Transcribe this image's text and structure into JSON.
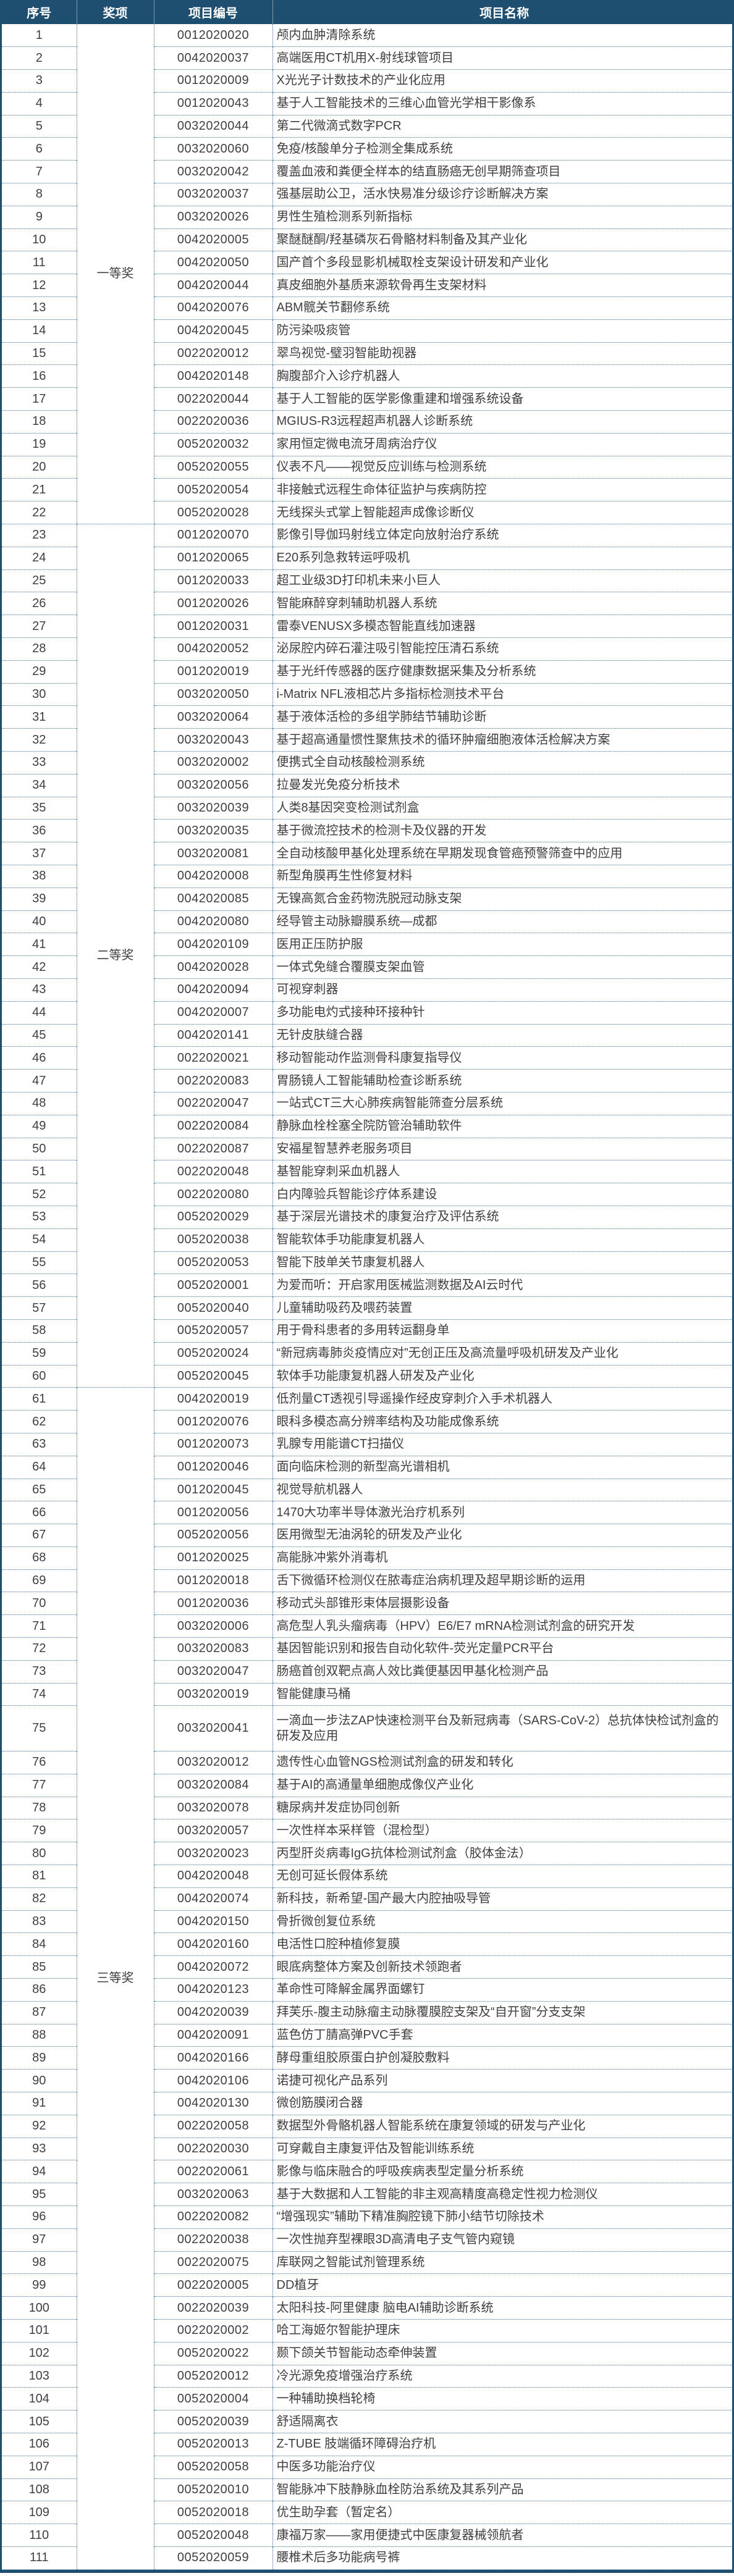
{
  "colors": {
    "header_bg": "#1e4e70",
    "body_text": "#3f3f3f",
    "grid_dotted": "#3f6f9f"
  },
  "table": {
    "columns": [
      "序号",
      "奖项",
      "项目编号",
      "项目名称"
    ],
    "groups": [
      {
        "label": "一等奖",
        "start": 1,
        "end": 22
      },
      {
        "label": "二等奖",
        "start": 23,
        "end": 60
      },
      {
        "label": "三等奖",
        "start": 61,
        "end": 111
      }
    ],
    "rows": [
      {
        "no": "1",
        "code": "0012020020",
        "name": "颅内血肿清除系统"
      },
      {
        "no": "2",
        "code": "0042020037",
        "name": "高端医用CT机用X-射线球管项目"
      },
      {
        "no": "3",
        "code": "0012020009",
        "name": "X光光子计数技术的产业化应用"
      },
      {
        "no": "4",
        "code": "0012020043",
        "name": "基于人工智能技术的三维心血管光学相干影像系"
      },
      {
        "no": "5",
        "code": "0032020044",
        "name": "第二代微滴式数字PCR"
      },
      {
        "no": "6",
        "code": "0032020060",
        "name": "免疫/核酸单分子检测全集成系统"
      },
      {
        "no": "7",
        "code": "0032020042",
        "name": "覆盖血液和粪便全样本的结直肠癌无创早期筛查项目"
      },
      {
        "no": "8",
        "code": "0032020037",
        "name": "强基层助公卫，活水快易准分级诊疗诊断解决方案"
      },
      {
        "no": "9",
        "code": "0032020026",
        "name": "男性生殖检测系列新指标"
      },
      {
        "no": "10",
        "code": "0042020005",
        "name": "聚醚醚酮/羟基磷灰石骨骼材料制备及其产业化"
      },
      {
        "no": "11",
        "code": "0042020050",
        "name": "国产首个多段显影机械取栓支架设计研发和产业化"
      },
      {
        "no": "12",
        "code": "0042020044",
        "name": "真皮细胞外基质来源软骨再生支架材料"
      },
      {
        "no": "13",
        "code": "0042020076",
        "name": "ABM髋关节翻修系统"
      },
      {
        "no": "14",
        "code": "0042020045",
        "name": "防污染吸痰管"
      },
      {
        "no": "15",
        "code": "0022020012",
        "name": "翠鸟视觉-璧羽智能助视器"
      },
      {
        "no": "16",
        "code": "0042020148",
        "name": "胸腹部介入诊疗机器人"
      },
      {
        "no": "17",
        "code": "0022020044",
        "name": "基于人工智能的医学影像重建和增强系统设备"
      },
      {
        "no": "18",
        "code": "0022020036",
        "name": "MGIUS-R3远程超声机器人诊断系统"
      },
      {
        "no": "19",
        "code": "0052020032",
        "name": "家用恒定微电流牙周病治疗仪"
      },
      {
        "no": "20",
        "code": "0052020055",
        "name": "仪表不凡——视觉反应训练与检测系统"
      },
      {
        "no": "21",
        "code": "0052020054",
        "name": "非接触式远程生命体征监护与疾病防控"
      },
      {
        "no": "22",
        "code": "0052020028",
        "name": "无线探头式掌上智能超声成像诊断仪"
      },
      {
        "no": "23",
        "code": "0012020070",
        "name": "影像引导伽玛射线立体定向放射治疗系统"
      },
      {
        "no": "24",
        "code": "0012020065",
        "name": "E20系列急救转运呼吸机"
      },
      {
        "no": "25",
        "code": "0012020033",
        "name": "超工业级3D打印机未来小巨人"
      },
      {
        "no": "26",
        "code": "0012020026",
        "name": "智能麻醉穿刺辅助机器人系统"
      },
      {
        "no": "27",
        "code": "0012020031",
        "name": "雷泰VENUSX多模态智能直线加速器"
      },
      {
        "no": "28",
        "code": "0042020052",
        "name": "泌尿腔内碎石灌注吸引智能控压清石系统"
      },
      {
        "no": "29",
        "code": "0012020019",
        "name": "基于光纤传感器的医疗健康数据采集及分析系统"
      },
      {
        "no": "30",
        "code": "0032020050",
        "name": "i-Matrix NFL液相芯片多指标检测技术平台"
      },
      {
        "no": "31",
        "code": "0032020064",
        "name": "基于液体活检的多组学肺结节辅助诊断"
      },
      {
        "no": "32",
        "code": "0032020043",
        "name": "基于超高通量惯性聚焦技术的循环肿瘤细胞液体活检解决方案"
      },
      {
        "no": "33",
        "code": "0032020002",
        "name": "便携式全自动核酸检测系统"
      },
      {
        "no": "34",
        "code": "0032020056",
        "name": "拉曼发光免疫分析技术"
      },
      {
        "no": "35",
        "code": "0032020039",
        "name": "人类8基因突变检测试剂盒"
      },
      {
        "no": "36",
        "code": "0032020035",
        "name": "基于微流控技术的检测卡及仪器的开发"
      },
      {
        "no": "37",
        "code": "0032020081",
        "name": "全自动核酸甲基化处理系统在早期发现食管癌预警筛查中的应用"
      },
      {
        "no": "38",
        "code": "0042020008",
        "name": "新型角膜再生性修复材料"
      },
      {
        "no": "39",
        "code": "0042020085",
        "name": "无镍高氮合金药物洗脱冠动脉支架"
      },
      {
        "no": "40",
        "code": "0042020080",
        "name": "经导管主动脉瓣膜系统—成都"
      },
      {
        "no": "41",
        "code": "0042020109",
        "name": "医用正压防护服"
      },
      {
        "no": "42",
        "code": "0042020028",
        "name": "一体式免缝合覆膜支架血管"
      },
      {
        "no": "43",
        "code": "0042020094",
        "name": "可视穿刺器"
      },
      {
        "no": "44",
        "code": "0042020007",
        "name": "多功能电灼式接种环接种针"
      },
      {
        "no": "45",
        "code": "0042020141",
        "name": "无针皮肤缝合器"
      },
      {
        "no": "46",
        "code": "0022020021",
        "name": "移动智能动作监测骨科康复指导仪"
      },
      {
        "no": "47",
        "code": "0022020083",
        "name": "胃肠镜人工智能辅助检查诊断系统"
      },
      {
        "no": "48",
        "code": "0022020047",
        "name": "一站式CT三大心肺疾病智能筛查分层系统"
      },
      {
        "no": "49",
        "code": "0022020084",
        "name": "静脉血栓栓塞全院防管治辅助软件"
      },
      {
        "no": "50",
        "code": "0022020087",
        "name": "安福星智慧养老服务项目"
      },
      {
        "no": "51",
        "code": "0022020048",
        "name": "基智能穿刺采血机器人"
      },
      {
        "no": "52",
        "code": "0022020080",
        "name": "白内障验兵智能诊疗体系建设"
      },
      {
        "no": "53",
        "code": "0052020029",
        "name": "基于深层光谱技术的康复治疗及评估系统"
      },
      {
        "no": "54",
        "code": "0052020038",
        "name": "智能软体手功能康复机器人"
      },
      {
        "no": "55",
        "code": "0052020053",
        "name": "智能下肢单关节康复机器人"
      },
      {
        "no": "56",
        "code": "0052020001",
        "name": "为爱而听：开启家用医械监测数据及AI云时代"
      },
      {
        "no": "57",
        "code": "0052020040",
        "name": "儿童辅助吸药及喂药装置"
      },
      {
        "no": "58",
        "code": "0052020057",
        "name": "用于骨科患者的多用转运翻身单"
      },
      {
        "no": "59",
        "code": "0052020024",
        "name": "“新冠病毒肺炎疫情应对”无创正压及高流量呼吸机研发及产业化"
      },
      {
        "no": "60",
        "code": "0052020045",
        "name": "软体手功能康复机器人研发及产业化"
      },
      {
        "no": "61",
        "code": "0042020019",
        "name": "低剂量CT透视引导遥操作经皮穿刺介入手术机器人"
      },
      {
        "no": "62",
        "code": "0012020076",
        "name": "眼科多模态高分辨率结构及功能成像系统"
      },
      {
        "no": "63",
        "code": "0012020073",
        "name": "乳腺专用能谱CT扫描仪"
      },
      {
        "no": "64",
        "code": "0012020046",
        "name": "面向临床检测的新型高光谱相机"
      },
      {
        "no": "65",
        "code": "0012020045",
        "name": "视觉导航机器人"
      },
      {
        "no": "66",
        "code": "0012020056",
        "name": "1470大功率半导体激光治疗机系列"
      },
      {
        "no": "67",
        "code": "0052020056",
        "name": "医用微型无油涡轮的研发及产业化"
      },
      {
        "no": "68",
        "code": "0012020025",
        "name": "高能脉冲紫外消毒机"
      },
      {
        "no": "69",
        "code": "0012020018",
        "name": "舌下微循环检测仪在脓毒症治病机理及超早期诊断的运用"
      },
      {
        "no": "70",
        "code": "0012020036",
        "name": "移动式头部锥形束体层摄影设备"
      },
      {
        "no": "71",
        "code": "0032020006",
        "name": "高危型人乳头瘤病毒（HPV）E6/E7 mRNA检测试剂盒的研究开发"
      },
      {
        "no": "72",
        "code": "0032020083",
        "name": "基因智能识别和报告自动化软件-荧光定量PCR平台"
      },
      {
        "no": "73",
        "code": "0032020047",
        "name": "肠癌首创双靶点高人效比粪便基因甲基化检测产品"
      },
      {
        "no": "74",
        "code": "0032020019",
        "name": "智能健康马桶"
      },
      {
        "no": "75",
        "code": "0032020041",
        "name": "一滴血一步法ZAP快速检测平台及新冠病毒（SARS-CoV-2）总抗体快检试剂盒的研发及应用",
        "tall": true
      },
      {
        "no": "76",
        "code": "0032020012",
        "name": "遗传性心血管NGS检测试剂盒的研发和转化"
      },
      {
        "no": "77",
        "code": "0032020084",
        "name": "基于AI的高通量单细胞成像仪产业化"
      },
      {
        "no": "78",
        "code": "0032020078",
        "name": "糖尿病并发症协同创新"
      },
      {
        "no": "79",
        "code": "0032020057",
        "name": "一次性样本采样管（混检型）"
      },
      {
        "no": "80",
        "code": "0032020023",
        "name": "丙型肝炎病毒IgG抗体检测试剂盒（胶体金法）"
      },
      {
        "no": "81",
        "code": "0042020048",
        "name": "无创可延长假体系统"
      },
      {
        "no": "82",
        "code": "0042020074",
        "name": "新科技，新希望-国产最大内腔抽吸导管"
      },
      {
        "no": "83",
        "code": "0042020150",
        "name": "骨折微创复位系统"
      },
      {
        "no": "84",
        "code": "0042020160",
        "name": "电活性口腔种植修复膜"
      },
      {
        "no": "85",
        "code": "0042020072",
        "name": "眼底病整体方案及创新技术领跑者"
      },
      {
        "no": "86",
        "code": "0042020123",
        "name": "革命性可降解金属界面螺钉"
      },
      {
        "no": "87",
        "code": "0042020039",
        "name": "拜芙乐-腹主动脉瘤主动脉覆膜腔支架及“自开窗”分支支架"
      },
      {
        "no": "88",
        "code": "0042020091",
        "name": "蓝色仿丁腈高弹PVC手套"
      },
      {
        "no": "89",
        "code": "0042020166",
        "name": "酵母重组胶原蛋白护创凝胶敷料"
      },
      {
        "no": "90",
        "code": "0042020106",
        "name": "诺捷可视化产品系列"
      },
      {
        "no": "91",
        "code": "0042020130",
        "name": "微创筋膜闭合器"
      },
      {
        "no": "92",
        "code": "0022020058",
        "name": "数据型外骨骼机器人智能系统在康复领域的研发与产业化"
      },
      {
        "no": "93",
        "code": "0022020030",
        "name": "可穿戴自主康复评估及智能训练系统"
      },
      {
        "no": "94",
        "code": "0022020061",
        "name": "影像与临床融合的呼吸疾病表型定量分析系统"
      },
      {
        "no": "95",
        "code": "0032020063",
        "name": "基于大数据和人工智能的非主观高精度高稳定性视力检测仪"
      },
      {
        "no": "96",
        "code": "0022020082",
        "name": "“增强现实”辅助下精准胸腔镜下肺小结节切除技术"
      },
      {
        "no": "97",
        "code": "0022020038",
        "name": "一次性抛弃型裸眼3D高清电子支气管内窥镜"
      },
      {
        "no": "98",
        "code": "0022020075",
        "name": "库联网之智能试剂管理系统"
      },
      {
        "no": "99",
        "code": "0022020005",
        "name": "DD植牙"
      },
      {
        "no": "100",
        "code": "0022020039",
        "name": "太阳科技-阿里健康 脑电AI辅助诊断系统"
      },
      {
        "no": "101",
        "code": "0022020002",
        "name": "哈工海姬尔智能护理床"
      },
      {
        "no": "102",
        "code": "0052020022",
        "name": "颞下颌关节智能动态牵伸装置"
      },
      {
        "no": "103",
        "code": "0052020012",
        "name": "冷光源免疫增强治疗系统"
      },
      {
        "no": "104",
        "code": "0052020004",
        "name": "一种辅助换档轮椅"
      },
      {
        "no": "105",
        "code": "0052020039",
        "name": "舒适隔离衣"
      },
      {
        "no": "106",
        "code": "0052020013",
        "name": "Z-TUBE 肢端循环障碍治疗机"
      },
      {
        "no": "107",
        "code": "0052020058",
        "name": "中医多功能治疗仪"
      },
      {
        "no": "108",
        "code": "0052020010",
        "name": "智能脉冲下肢静脉血栓防治系统及其系列产品"
      },
      {
        "no": "109",
        "code": "0052020018",
        "name": "优生助孕套（暂定名）"
      },
      {
        "no": "110",
        "code": "0052020048",
        "name": "康福万家——家用便捷式中医康复器械领航者"
      },
      {
        "no": "111",
        "code": "0052020059",
        "name": "腰椎术后多功能病号裤"
      }
    ]
  }
}
